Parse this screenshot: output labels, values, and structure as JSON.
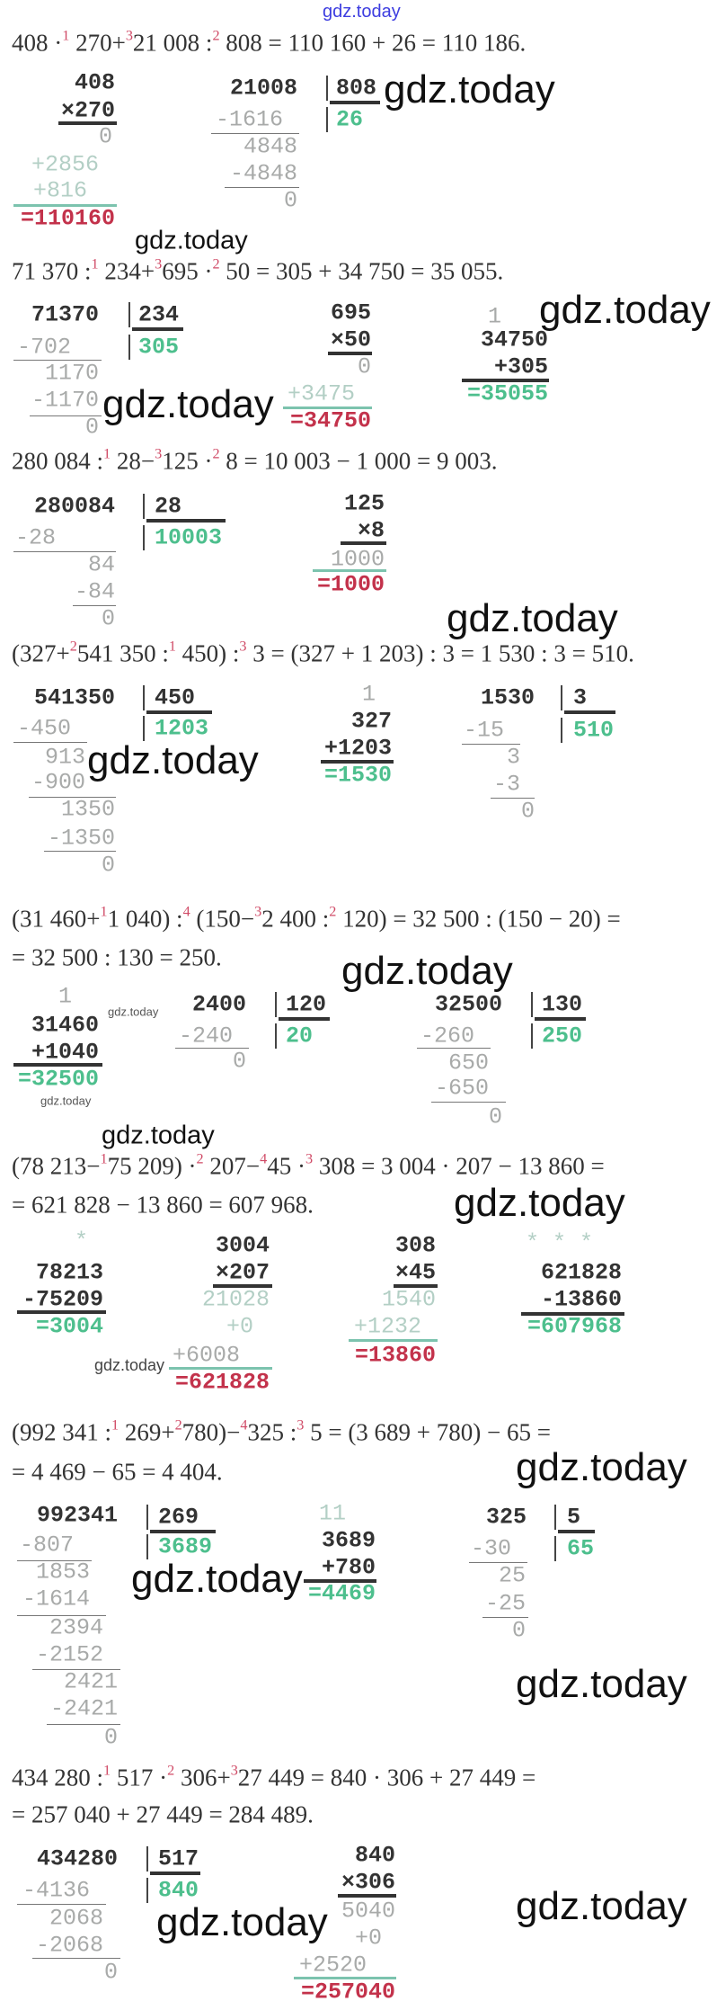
{
  "header_watermark": "gdz.today",
  "watermark": "gdz.today",
  "colors": {
    "text": "#333333",
    "step_number": "#d04a66",
    "quotient_result": "#4dbf8d",
    "product_result": "#c3324b",
    "intermediate": "#a8aaa9"
  },
  "sections": [
    {
      "expression": [
        [
          "408 ·",
          "1",
          " 270+",
          "3",
          "21 008 :",
          "2",
          " 808 = 110 160 + 26 = 110 186."
        ]
      ],
      "calcs": [
        {
          "type": "multiplication",
          "rows": [
            {
              "text": "408",
              "tone": "main"
            },
            {
              "text": "×270",
              "tone": "main"
            },
            {
              "text": "0",
              "tone": "faint"
            },
            {
              "text": "+2856",
              "tone": "faintg"
            },
            {
              "text": "+816",
              "tone": "faintg"
            },
            {
              "text": "=110160",
              "tone": "red"
            }
          ]
        },
        {
          "type": "division",
          "rows": [
            {
              "text": "21008",
              "tone": "main"
            },
            {
              "text": "-1616",
              "tone": "faint"
            },
            {
              "text": "4848",
              "tone": "faint"
            },
            {
              "text": "-4848",
              "tone": "faint"
            },
            {
              "text": "0",
              "tone": "faint"
            }
          ],
          "divisor": "808",
          "quotient": "26"
        }
      ]
    },
    {
      "expression": [
        [
          "71 370 :",
          "1",
          " 234+",
          "3",
          "695 ·",
          "2",
          " 50 = 305 + 34 750 = 35 055."
        ]
      ],
      "calcs": [
        {
          "type": "division",
          "rows": [
            {
              "text": "71370",
              "tone": "main"
            },
            {
              "text": "-702",
              "tone": "faint"
            },
            {
              "text": "1170",
              "tone": "faint"
            },
            {
              "text": "-1170",
              "tone": "faint"
            },
            {
              "text": "0",
              "tone": "faint"
            }
          ],
          "divisor": "234",
          "quotient": "305"
        },
        {
          "type": "multiplication",
          "rows": [
            {
              "text": "695",
              "tone": "main"
            },
            {
              "text": "×50",
              "tone": "main"
            },
            {
              "text": "0",
              "tone": "faint"
            },
            {
              "text": "+3475",
              "tone": "faintg"
            },
            {
              "text": "=34750",
              "tone": "red"
            }
          ]
        },
        {
          "type": "addition",
          "rows": [
            {
              "text": "1",
              "tone": "faint"
            },
            {
              "text": "34750",
              "tone": "main"
            },
            {
              "text": "+305",
              "tone": "main"
            },
            {
              "text": "=35055",
              "tone": "green"
            }
          ]
        }
      ]
    },
    {
      "expression": [
        [
          "280 084 :",
          "1",
          " 28−",
          "3",
          "125 ·",
          "2",
          " 8 = 10 003 − 1 000 = 9 003."
        ]
      ],
      "calcs": [
        {
          "type": "division",
          "rows": [
            {
              "text": "280084",
              "tone": "main"
            },
            {
              "text": "-28",
              "tone": "faint"
            },
            {
              "text": "84",
              "tone": "faint"
            },
            {
              "text": "-84",
              "tone": "faint"
            },
            {
              "text": "0",
              "tone": "faint"
            }
          ],
          "divisor": "28",
          "quotient": "10003"
        },
        {
          "type": "multiplication",
          "rows": [
            {
              "text": "125",
              "tone": "main"
            },
            {
              "text": "×8",
              "tone": "main"
            },
            {
              "text": "1000",
              "tone": "faint"
            },
            {
              "text": "=1000",
              "tone": "red"
            }
          ]
        }
      ]
    },
    {
      "expression": [
        [
          "(327+",
          "2",
          "541 350 :",
          "1",
          " 450) :",
          "3",
          " 3 = (327 + 1 203) : 3 = 1 530 : 3 = 510."
        ]
      ],
      "calcs": [
        {
          "type": "division",
          "rows": [
            {
              "text": "541350",
              "tone": "main"
            },
            {
              "text": "-450",
              "tone": "faint"
            },
            {
              "text": "913",
              "tone": "faint"
            },
            {
              "text": "-900",
              "tone": "faint"
            },
            {
              "text": "1350",
              "tone": "faint"
            },
            {
              "text": "-1350",
              "tone": "faint"
            },
            {
              "text": "0",
              "tone": "faint"
            }
          ],
          "divisor": "450",
          "quotient": "1203"
        },
        {
          "type": "addition",
          "rows": [
            {
              "text": "1",
              "tone": "faint"
            },
            {
              "text": "327",
              "tone": "main"
            },
            {
              "text": "+1203",
              "tone": "main"
            },
            {
              "text": "=1530",
              "tone": "green"
            }
          ]
        },
        {
          "type": "division",
          "rows": [
            {
              "text": "1530",
              "tone": "main"
            },
            {
              "text": "-15",
              "tone": "faint"
            },
            {
              "text": "3",
              "tone": "faint"
            },
            {
              "text": "-3",
              "tone": "faint"
            },
            {
              "text": "0",
              "tone": "faint"
            }
          ],
          "divisor": "3",
          "quotient": "510"
        }
      ]
    },
    {
      "expression": [
        [
          "(31 460+",
          "1",
          "1 040) :",
          "4",
          " (150−",
          "3",
          "2 400 :",
          "2",
          " 120) = 32 500 : (150 − 20) ="
        ],
        [
          "= 32 500 : 130 = 250."
        ]
      ],
      "calcs": [
        {
          "type": "addition",
          "rows": [
            {
              "text": "1",
              "tone": "faint"
            },
            {
              "text": "31460",
              "tone": "main"
            },
            {
              "text": "+1040",
              "tone": "main"
            },
            {
              "text": "=32500",
              "tone": "green"
            }
          ]
        },
        {
          "type": "division",
          "rows": [
            {
              "text": "2400",
              "tone": "main"
            },
            {
              "text": "-240",
              "tone": "faint"
            },
            {
              "text": "0",
              "tone": "faint"
            }
          ],
          "divisor": "120",
          "quotient": "20"
        },
        {
          "type": "division",
          "rows": [
            {
              "text": "32500",
              "tone": "main"
            },
            {
              "text": "-260",
              "tone": "faint"
            },
            {
              "text": "650",
              "tone": "faint"
            },
            {
              "text": "-650",
              "tone": "faint"
            },
            {
              "text": "0",
              "tone": "faint"
            }
          ],
          "divisor": "130",
          "quotient": "250"
        }
      ]
    },
    {
      "expression": [
        [
          "(78 213−",
          "1",
          "75 209) ·",
          "2",
          " 207−",
          "4",
          "45 ·",
          "3",
          " 308 = 3 004 · 207 − 13 860 ="
        ],
        [
          "= 621 828 − 13 860 = 607 968."
        ]
      ],
      "calcs": [
        {
          "type": "subtraction",
          "rows": [
            {
              "text": "*",
              "tone": "faintg"
            },
            {
              "text": "78213",
              "tone": "main"
            },
            {
              "text": "-75209",
              "tone": "main"
            },
            {
              "text": "=3004",
              "tone": "green"
            }
          ]
        },
        {
          "type": "multiplication",
          "rows": [
            {
              "text": "3004",
              "tone": "main"
            },
            {
              "text": "×207",
              "tone": "main"
            },
            {
              "text": "21028",
              "tone": "faintg"
            },
            {
              "text": "+0",
              "tone": "faintg"
            },
            {
              "text": "+6008",
              "tone": "faint"
            },
            {
              "text": "=621828",
              "tone": "red"
            }
          ]
        },
        {
          "type": "multiplication",
          "rows": [
            {
              "text": "308",
              "tone": "main"
            },
            {
              "text": "×45",
              "tone": "main"
            },
            {
              "text": "1540",
              "tone": "faintg"
            },
            {
              "text": "+1232",
              "tone": "faintg"
            },
            {
              "text": "=13860",
              "tone": "red"
            }
          ]
        },
        {
          "type": "subtraction",
          "rows": [
            {
              "text": "* * *",
              "tone": "faintg"
            },
            {
              "text": "621828",
              "tone": "main"
            },
            {
              "text": "-13860",
              "tone": "main"
            },
            {
              "text": "=607968",
              "tone": "green"
            }
          ]
        }
      ]
    },
    {
      "expression": [
        [
          "(992 341 :",
          "1",
          " 269+",
          "2",
          "780)−",
          "4",
          "325 :",
          "3",
          " 5 = (3 689 + 780) − 65 ="
        ],
        [
          "= 4 469 − 65 = 4 404."
        ]
      ],
      "calcs": [
        {
          "type": "division",
          "rows": [
            {
              "text": "992341",
              "tone": "main"
            },
            {
              "text": "-807",
              "tone": "faint"
            },
            {
              "text": "1853",
              "tone": "faint"
            },
            {
              "text": "-1614",
              "tone": "faint"
            },
            {
              "text": "2394",
              "tone": "faint"
            },
            {
              "text": "-2152",
              "tone": "faint"
            },
            {
              "text": "2421",
              "tone": "faint"
            },
            {
              "text": "-2421",
              "tone": "faint"
            },
            {
              "text": "0",
              "tone": "faint"
            }
          ],
          "divisor": "269",
          "quotient": "3689"
        },
        {
          "type": "addition",
          "rows": [
            {
              "text": "11",
              "tone": "faintg"
            },
            {
              "text": "3689",
              "tone": "main"
            },
            {
              "text": "+780",
              "tone": "main"
            },
            {
              "text": "=4469",
              "tone": "green"
            }
          ]
        },
        {
          "type": "division",
          "rows": [
            {
              "text": "325",
              "tone": "main"
            },
            {
              "text": "-30",
              "tone": "faint"
            },
            {
              "text": "25",
              "tone": "faint"
            },
            {
              "text": "-25",
              "tone": "faint"
            },
            {
              "text": "0",
              "tone": "faint"
            }
          ],
          "divisor": "5",
          "quotient": "65"
        }
      ]
    },
    {
      "expression": [
        [
          "434 280 :",
          "1",
          " 517 ·",
          "2",
          " 306+",
          "3",
          "27 449 = 840 · 306 + 27 449 ="
        ],
        [
          "= 257 040 + 27 449 = 284 489."
        ]
      ],
      "calcs": [
        {
          "type": "division",
          "rows": [
            {
              "text": "434280",
              "tone": "main"
            },
            {
              "text": "-4136",
              "tone": "faint"
            },
            {
              "text": "2068",
              "tone": "faint"
            },
            {
              "text": "-2068",
              "tone": "faint"
            },
            {
              "text": "0",
              "tone": "faint"
            }
          ],
          "divisor": "517",
          "quotient": "840"
        },
        {
          "type": "multiplication",
          "rows": [
            {
              "text": "840",
              "tone": "main"
            },
            {
              "text": "×306",
              "tone": "main"
            },
            {
              "text": "5040",
              "tone": "faint"
            },
            {
              "text": "+0",
              "tone": "faint"
            },
            {
              "text": "+2520",
              "tone": "faint"
            },
            {
              "text": "=257040",
              "tone": "red"
            }
          ]
        }
      ]
    }
  ]
}
